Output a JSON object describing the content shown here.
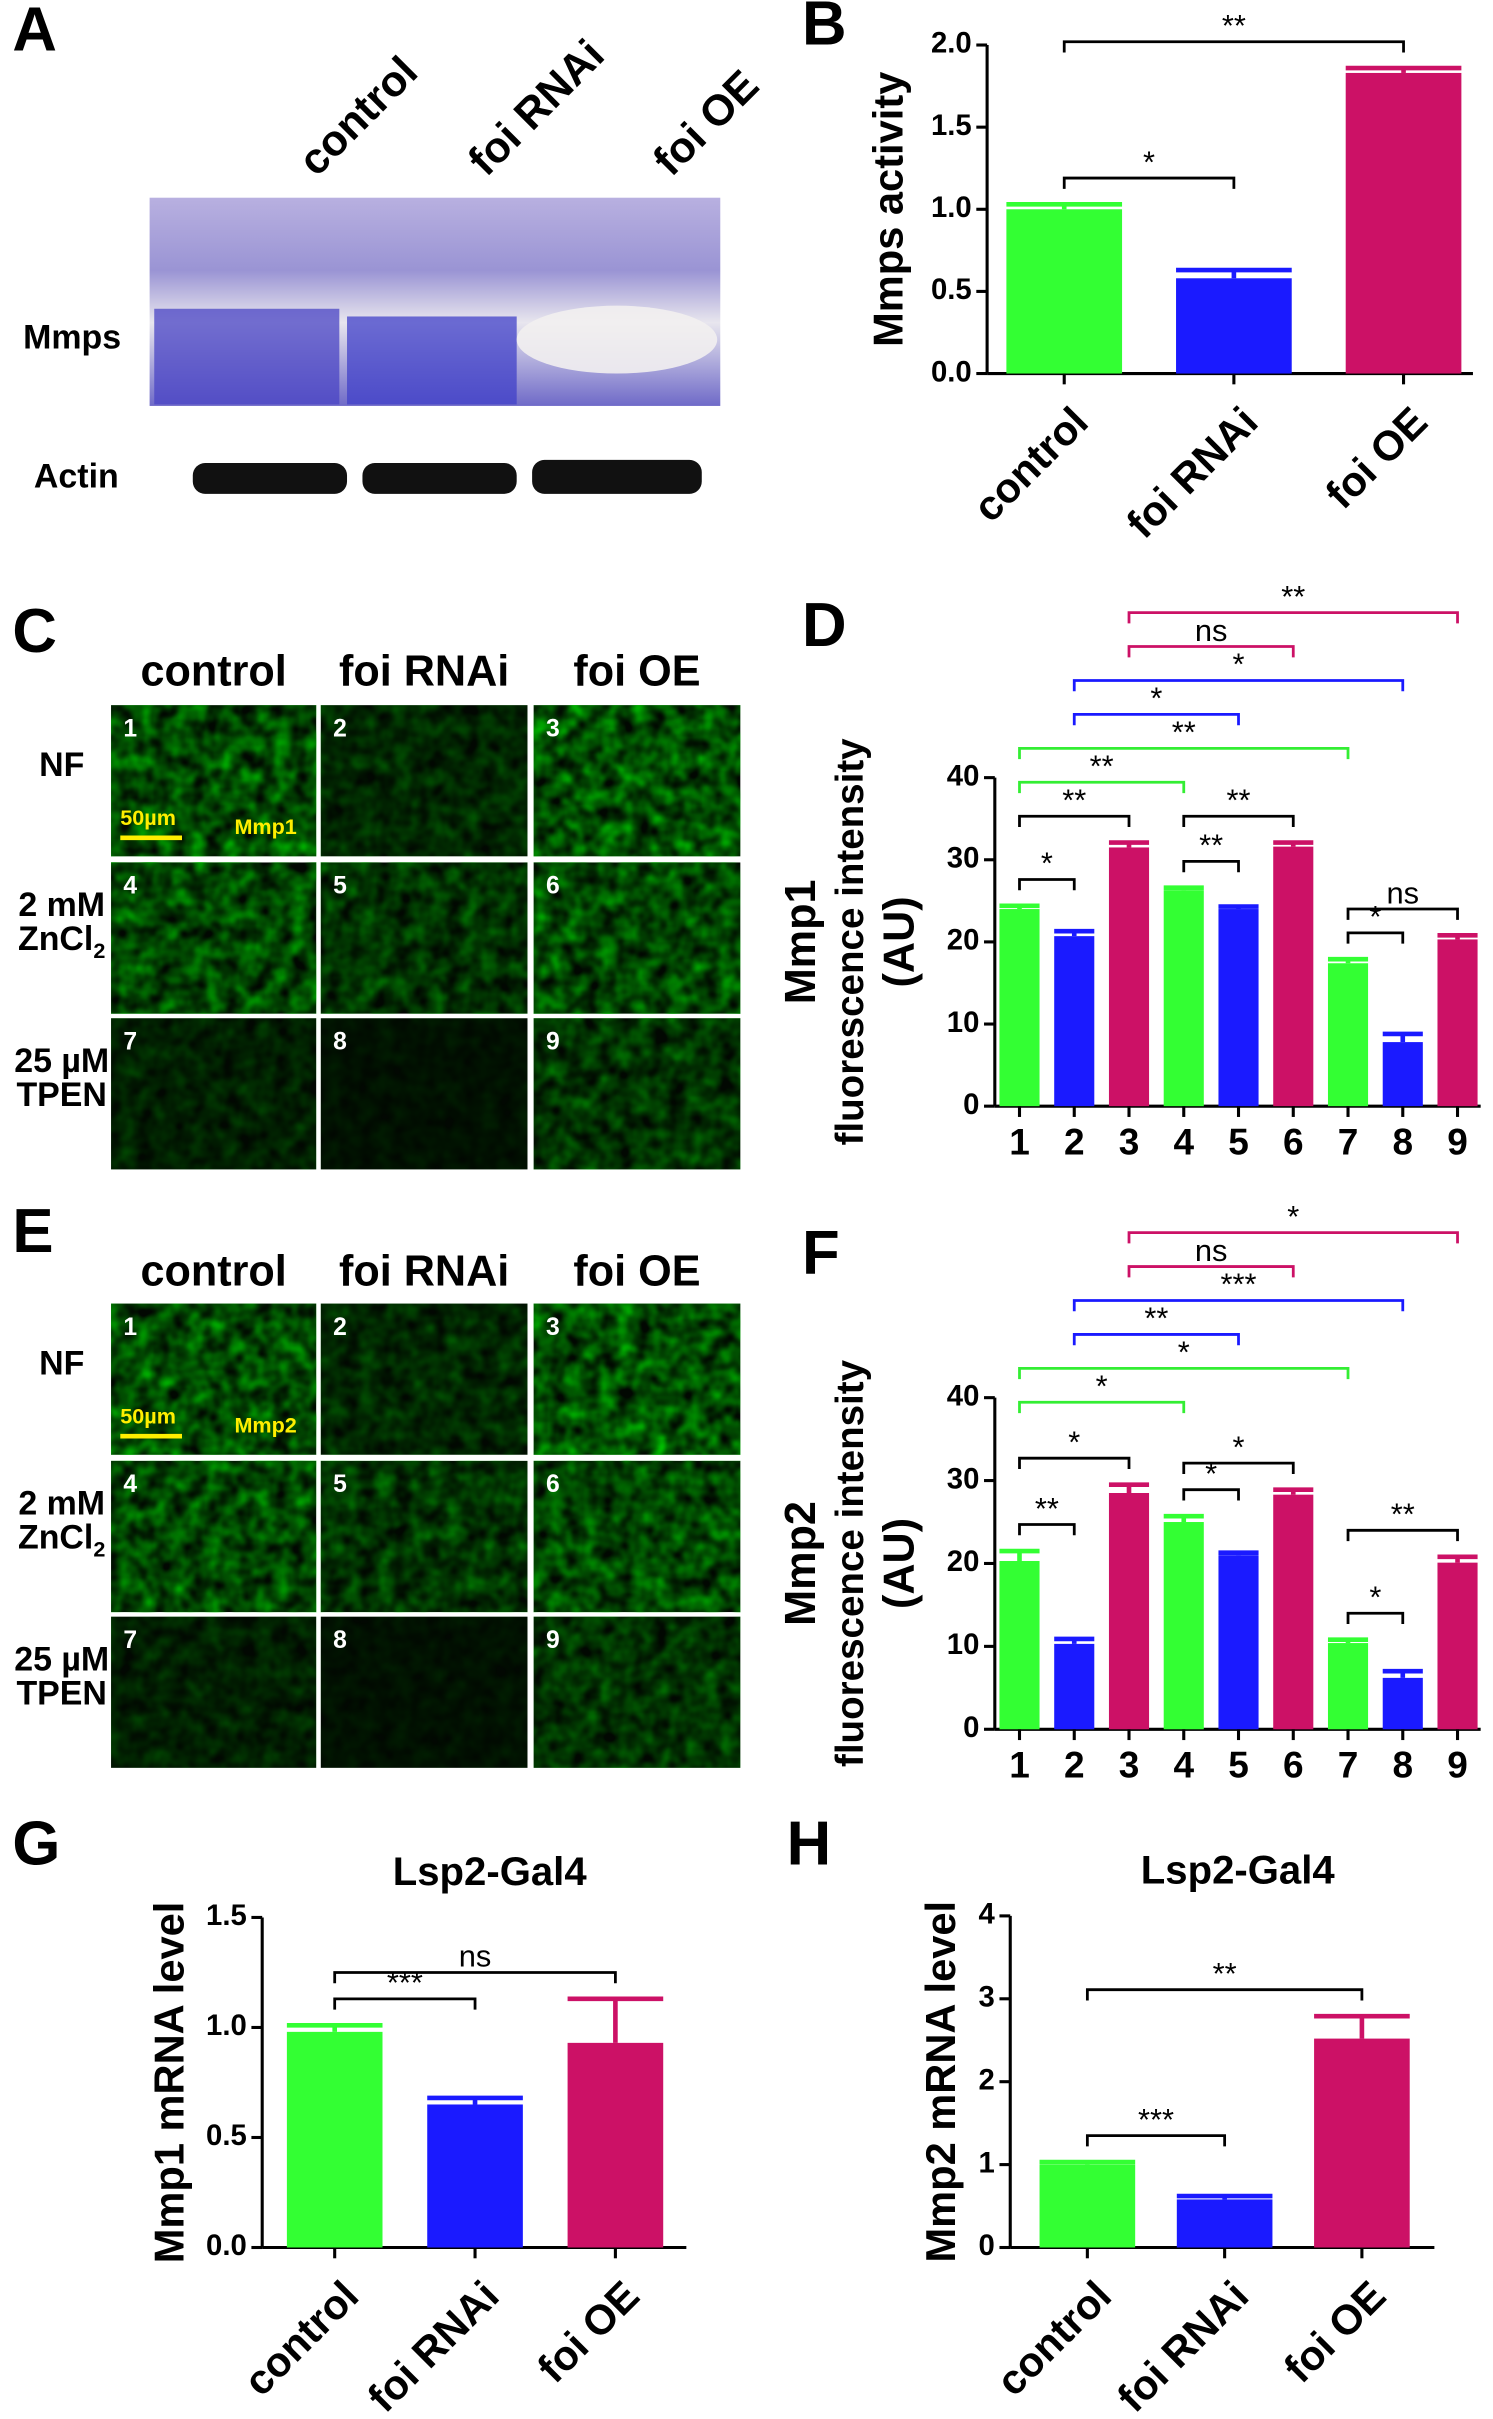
{
  "blot": {
    "label": "A",
    "lanes": [
      "control",
      "foi RNAi",
      "foi OE"
    ],
    "rows": [
      "Mmps",
      "Actin"
    ]
  },
  "micrographs": [
    {
      "label": "C",
      "columns": [
        "control",
        "foi RNAi",
        "foi OE"
      ],
      "rows": [
        {
          "text": [
            "NF"
          ]
        },
        {
          "text": [
            "2 mM",
            "ZnCl"
          ],
          "sub": "2"
        },
        {
          "text": [
            "25 µM",
            "TPEN"
          ]
        }
      ],
      "cells": [
        "1",
        "2",
        "3",
        "4",
        "5",
        "6",
        "7",
        "8",
        "9"
      ],
      "scale": "50µm",
      "stain": "Mmp1"
    },
    {
      "label": "E",
      "columns": [
        "control",
        "foi RNAi",
        "foi OE"
      ],
      "rows": [
        {
          "text": [
            "NF"
          ]
        },
        {
          "text": [
            "2 mM",
            "ZnCl"
          ],
          "sub": "2"
        },
        {
          "text": [
            "25 µM",
            "TPEN"
          ]
        }
      ],
      "cells": [
        "1",
        "2",
        "3",
        "4",
        "5",
        "6",
        "7",
        "8",
        "9"
      ],
      "scale": "50µm",
      "stain": "Mmp2"
    }
  ],
  "chart_data": [
    {
      "type": "bar",
      "panel": "B",
      "ylabel": "Mmps activity",
      "categories": [
        "control",
        "foi RNAi",
        "foi OE"
      ],
      "values": [
        1.0,
        0.58,
        1.83
      ],
      "errors": [
        0.03,
        0.05,
        0.03
      ],
      "colors": [
        "#33ff33",
        "#1a1aff",
        "#cc1166"
      ],
      "ylim": [
        0,
        2
      ],
      "yticks": [
        {
          "value": 0,
          "label": "0.0"
        },
        {
          "value": 0.5,
          "label": "0.5"
        },
        {
          "value": 1,
          "label": "1.0"
        },
        {
          "value": 1.5,
          "label": "1.5"
        },
        {
          "value": 2,
          "label": "2.0"
        }
      ],
      "annotations": [
        {
          "text": "*",
          "from": 0,
          "to": 1
        },
        {
          "text": "**",
          "from": 0,
          "to": 2
        }
      ]
    },
    {
      "type": "bar",
      "panel": "D",
      "ylabel": [
        "Mmp1",
        "fluorescence intensity",
        "(AU)"
      ],
      "categories": [
        "1",
        "2",
        "3",
        "4",
        "5",
        "6",
        "7",
        "8",
        "9"
      ],
      "values": [
        24,
        20.7,
        31.5,
        26.3,
        24,
        31.6,
        17.4,
        7.8,
        20.3
      ],
      "errors": [
        0.4,
        0.6,
        0.6,
        0.3,
        0.3,
        0.5,
        0.5,
        1.0,
        0.5
      ],
      "colors": [
        "#33ff33",
        "#1a1aff",
        "#cc1166",
        "#33ff33",
        "#1a1aff",
        "#cc1166",
        "#33ff33",
        "#1a1aff",
        "#cc1166"
      ],
      "ylim": [
        0,
        40
      ],
      "yticks": [
        0,
        10,
        20,
        30,
        40
      ],
      "annotations": [
        {
          "text": "*",
          "from": 0,
          "to": 1
        },
        {
          "text": "**",
          "from": 0,
          "to": 2
        },
        {
          "text": "**",
          "from": 3,
          "to": 4
        },
        {
          "text": "**",
          "from": 3,
          "to": 5
        },
        {
          "text": "*",
          "from": 6,
          "to": 7
        },
        {
          "text": "ns",
          "from": 6,
          "to": 8
        },
        {
          "text": "**",
          "from": 0,
          "to": 3,
          "color": "#33ee33"
        },
        {
          "text": "**",
          "from": 0,
          "to": 6,
          "color": "#33ee33"
        },
        {
          "text": "*",
          "from": 1,
          "to": 4,
          "color": "#1a1aff"
        },
        {
          "text": "*",
          "from": 1,
          "to": 7,
          "color": "#1a1aff"
        },
        {
          "text": "ns",
          "from": 2,
          "to": 5,
          "color": "#cc1166"
        },
        {
          "text": "**",
          "from": 2,
          "to": 8,
          "color": "#cc1166"
        }
      ]
    },
    {
      "type": "bar",
      "panel": "F",
      "ylabel": [
        "Mmp2",
        "fluorescence intensity",
        "(AU)"
      ],
      "categories": [
        "1",
        "2",
        "3",
        "4",
        "5",
        "6",
        "7",
        "8",
        "9"
      ],
      "values": [
        20.3,
        10.3,
        28.5,
        25,
        21,
        28.3,
        10.4,
        6.2,
        20.1
      ],
      "errors": [
        1.2,
        0.6,
        1.0,
        0.7,
        0.3,
        0.6,
        0.4,
        0.8,
        0.7
      ],
      "colors": [
        "#33ff33",
        "#1a1aff",
        "#cc1166",
        "#33ff33",
        "#1a1aff",
        "#cc1166",
        "#33ff33",
        "#1a1aff",
        "#cc1166"
      ],
      "ylim": [
        0,
        40
      ],
      "yticks": [
        0,
        10,
        20,
        30,
        40
      ],
      "annotations": [
        {
          "text": "**",
          "from": 0,
          "to": 1
        },
        {
          "text": "*",
          "from": 0,
          "to": 2
        },
        {
          "text": "*",
          "from": 3,
          "to": 4
        },
        {
          "text": "*",
          "from": 3,
          "to": 5
        },
        {
          "text": "*",
          "from": 6,
          "to": 7
        },
        {
          "text": "**",
          "from": 6,
          "to": 8
        },
        {
          "text": "*",
          "from": 0,
          "to": 3,
          "color": "#33ee33"
        },
        {
          "text": "*",
          "from": 0,
          "to": 6,
          "color": "#33ee33"
        },
        {
          "text": "**",
          "from": 1,
          "to": 4,
          "color": "#1a1aff"
        },
        {
          "text": "***",
          "from": 1,
          "to": 7,
          "color": "#1a1aff"
        },
        {
          "text": "ns",
          "from": 2,
          "to": 5,
          "color": "#cc1166"
        },
        {
          "text": "*",
          "from": 2,
          "to": 8,
          "color": "#cc1166"
        }
      ]
    },
    {
      "type": "bar",
      "panel": "G",
      "title": "Lsp2-Gal4",
      "ylabel": "Mmp1 mRNA level",
      "categories": [
        "control",
        "foi RNAi",
        "foi OE"
      ],
      "values": [
        0.98,
        0.65,
        0.93
      ],
      "errors": [
        0.03,
        0.03,
        0.2
      ],
      "colors": [
        "#33ff33",
        "#1a1aff",
        "#cc1166"
      ],
      "ylim": [
        0,
        1.5
      ],
      "yticks": [
        {
          "value": 0,
          "label": "0.0"
        },
        {
          "value": 0.5,
          "label": "0.5"
        },
        {
          "value": 1,
          "label": "1.0"
        },
        {
          "value": 1.5,
          "label": "1.5"
        }
      ],
      "annotations": [
        {
          "text": "***",
          "from": 0,
          "to": 1
        },
        {
          "text": "ns",
          "from": 0,
          "to": 2
        }
      ]
    },
    {
      "type": "bar",
      "panel": "H",
      "title": "Lsp2-Gal4",
      "ylabel": "Mmp2 mRNA level",
      "categories": [
        "control",
        "foi RNAi",
        "foi OE"
      ],
      "values": [
        1.0,
        0.58,
        2.52
      ],
      "errors": [
        0.03,
        0.04,
        0.27
      ],
      "colors": [
        "#33ff33",
        "#1a1aff",
        "#cc1166"
      ],
      "ylim": [
        0,
        4
      ],
      "yticks": [
        0,
        1,
        2,
        3,
        4
      ],
      "annotations": [
        {
          "text": "***",
          "from": 0,
          "to": 1
        },
        {
          "text": "**",
          "from": 0,
          "to": 2
        }
      ]
    }
  ]
}
